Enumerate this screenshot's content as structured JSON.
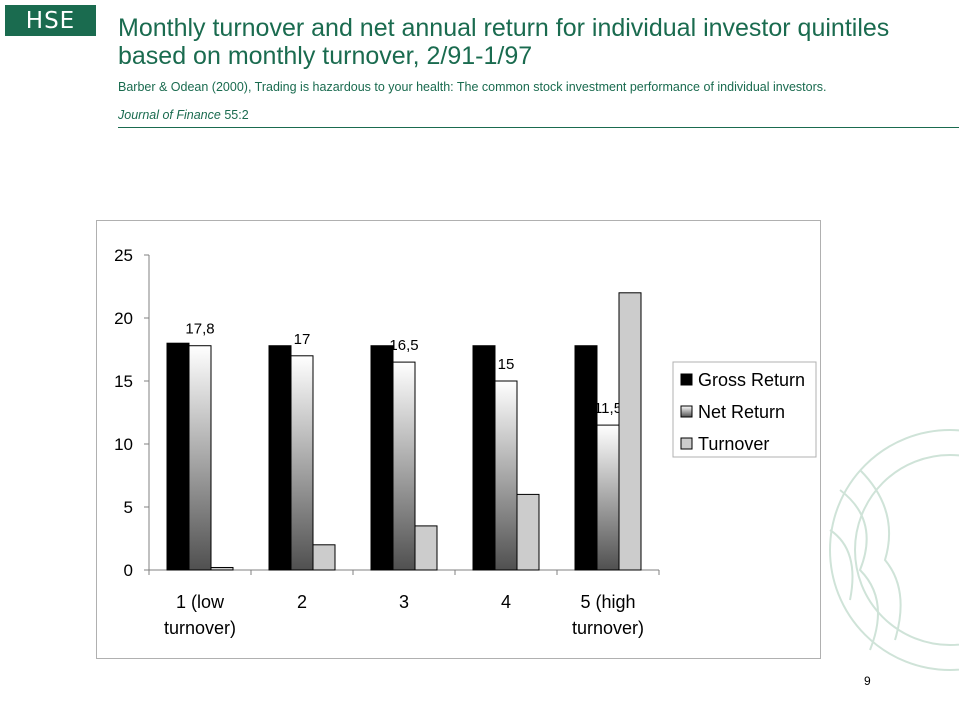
{
  "header": {
    "logo_text": "HSE",
    "title": "Monthly turnover and net annual return for individual investor quintiles based on monthly turnover, 2/91-1/97",
    "source": "Barber  & Odean (2000), Trading is hazardous to your health: The common stock investment performance of individual investors.",
    "journal_name": "Journal of Finance",
    "journal_issue": " 55:2"
  },
  "colors": {
    "brand_green": "#1a6b4f",
    "gross": "#000000",
    "turnover": "#cccccc"
  },
  "chart_data": {
    "type": "bar",
    "categories": [
      [
        "1 (low",
        "turnover)"
      ],
      [
        "2"
      ],
      [
        "3"
      ],
      [
        "4"
      ],
      [
        "5 (high",
        "turnover)"
      ]
    ],
    "series": [
      {
        "name": "Gross Return",
        "values": [
          18.0,
          17.8,
          17.8,
          17.8,
          17.8
        ]
      },
      {
        "name": "Net Return",
        "values": [
          17.8,
          17.0,
          16.5,
          15.0,
          11.5
        ],
        "labels": [
          "17,8",
          "17",
          "16,5",
          "15",
          "11,5"
        ]
      },
      {
        "name": "Turnover",
        "values": [
          0.2,
          2.0,
          3.5,
          6.0,
          22.0
        ]
      }
    ],
    "ylim": [
      0,
      25
    ],
    "yticks": [
      "0",
      "5",
      "10",
      "15",
      "20",
      "25"
    ],
    "legend": "right",
    "grid": false
  },
  "footer": {
    "page_number": "9"
  }
}
